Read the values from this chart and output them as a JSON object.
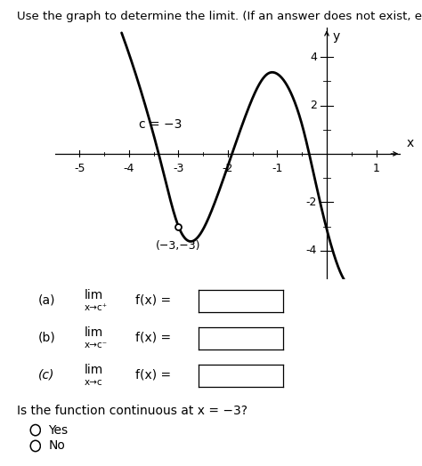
{
  "title": "Use the graph to determine the limit. (If an answer does not exist, enter DNE.)",
  "c_label": "c = −3",
  "min_label": "(−3,−3)",
  "xlabel": "x",
  "ylabel": "y",
  "xlim": [
    -5.5,
    1.5
  ],
  "ylim": [
    -5.2,
    5.2
  ],
  "xticks": [
    -5,
    -4,
    -3,
    -2,
    -1,
    1
  ],
  "yticks": [
    -4,
    -2,
    2,
    4
  ],
  "curve_color": "#000000",
  "curve_linewidth": 2.0,
  "background_color": "#ffffff",
  "text_color": "#000000",
  "continuous_question": "Is the function continuous at x = −3?",
  "radio_options": [
    "Yes",
    "No"
  ],
  "curve_x_pts": [
    -4.15,
    -3.7,
    -3.3,
    -3.0,
    -2.7,
    -2.3,
    -2.0,
    -1.6,
    -1.2,
    -1.0,
    -0.7,
    -0.5,
    -0.3,
    -0.1,
    0.05,
    0.2,
    0.35
  ],
  "curve_y_pts": [
    5.0,
    2.2,
    -0.8,
    -3.0,
    -3.6,
    -2.2,
    -0.5,
    1.8,
    3.3,
    3.3,
    2.4,
    1.2,
    -0.5,
    -2.3,
    -3.5,
    -4.5,
    -5.2
  ]
}
